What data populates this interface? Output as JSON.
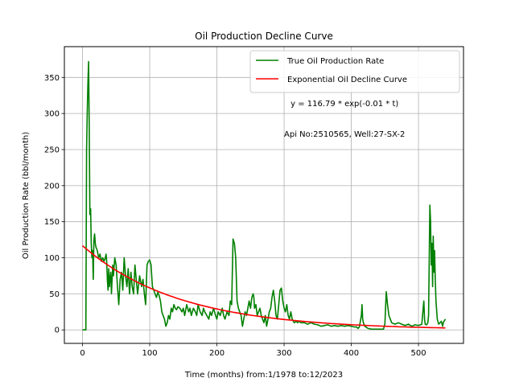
{
  "chart_data": {
    "type": "line",
    "title": "Oil Production Decline Curve",
    "xlabel": "Time (months) from:1/1978 to:12/2023",
    "ylabel": "Oil Production Rate (bbl/month)",
    "xlim": [
      -27,
      567
    ],
    "ylim": [
      -18.7,
      392.7
    ],
    "xticks": [
      0,
      100,
      200,
      300,
      400,
      500
    ],
    "yticks": [
      0,
      50,
      100,
      150,
      200,
      250,
      300,
      350
    ],
    "grid": true,
    "legend_position": "top-right",
    "annotations": [
      {
        "text": "y = 116.79 * exp(-0.01 * t)",
        "x": 390,
        "y": 310
      },
      {
        "text": "Api No:2510565, Well:27-SX-2",
        "x": 390,
        "y": 268
      }
    ],
    "series": [
      {
        "name": "True Oil Production Rate",
        "color": "#008000",
        "points": [
          [
            0,
            0
          ],
          [
            2,
            0
          ],
          [
            4,
            0
          ],
          [
            5,
            0
          ],
          [
            6,
            250
          ],
          [
            7,
            300
          ],
          [
            8,
            340
          ],
          [
            9,
            372
          ],
          [
            10,
            280
          ],
          [
            11,
            160
          ],
          [
            12,
            168
          ],
          [
            13,
            120
          ],
          [
            14,
            100
          ],
          [
            15,
            110
          ],
          [
            16,
            70
          ],
          [
            17,
            125
          ],
          [
            18,
            133
          ],
          [
            19,
            120
          ],
          [
            20,
            115
          ],
          [
            22,
            110
          ],
          [
            24,
            100
          ],
          [
            26,
            105
          ],
          [
            28,
            95
          ],
          [
            30,
            100
          ],
          [
            32,
            95
          ],
          [
            34,
            100
          ],
          [
            35,
            105
          ],
          [
            36,
            95
          ],
          [
            37,
            70
          ],
          [
            38,
            55
          ],
          [
            39,
            85
          ],
          [
            40,
            60
          ],
          [
            42,
            80
          ],
          [
            43,
            50
          ],
          [
            44,
            70
          ],
          [
            45,
            90
          ],
          [
            46,
            75
          ],
          [
            48,
            100
          ],
          [
            50,
            90
          ],
          [
            52,
            60
          ],
          [
            54,
            35
          ],
          [
            56,
            70
          ],
          [
            58,
            80
          ],
          [
            60,
            55
          ],
          [
            62,
            100
          ],
          [
            64,
            75
          ],
          [
            66,
            60
          ],
          [
            68,
            85
          ],
          [
            70,
            50
          ],
          [
            72,
            80
          ],
          [
            74,
            60
          ],
          [
            76,
            50
          ],
          [
            78,
            90
          ],
          [
            80,
            70
          ],
          [
            82,
            50
          ],
          [
            85,
            75
          ],
          [
            88,
            60
          ],
          [
            90,
            70
          ],
          [
            92,
            50
          ],
          [
            94,
            35
          ],
          [
            96,
            90
          ],
          [
            98,
            95
          ],
          [
            100,
            97
          ],
          [
            102,
            90
          ],
          [
            104,
            60
          ],
          [
            106,
            55
          ],
          [
            108,
            50
          ],
          [
            110,
            45
          ],
          [
            112,
            52
          ],
          [
            114,
            48
          ],
          [
            116,
            40
          ],
          [
            118,
            25
          ],
          [
            120,
            20
          ],
          [
            122,
            15
          ],
          [
            124,
            5
          ],
          [
            126,
            10
          ],
          [
            128,
            20
          ],
          [
            130,
            15
          ],
          [
            132,
            30
          ],
          [
            134,
            25
          ],
          [
            136,
            35
          ],
          [
            138,
            30
          ],
          [
            140,
            28
          ],
          [
            142,
            32
          ],
          [
            145,
            30
          ],
          [
            148,
            25
          ],
          [
            150,
            30
          ],
          [
            152,
            20
          ],
          [
            155,
            35
          ],
          [
            158,
            25
          ],
          [
            160,
            30
          ],
          [
            162,
            20
          ],
          [
            165,
            30
          ],
          [
            168,
            25
          ],
          [
            170,
            20
          ],
          [
            172,
            35
          ],
          [
            175,
            25
          ],
          [
            178,
            20
          ],
          [
            180,
            30
          ],
          [
            182,
            25
          ],
          [
            185,
            20
          ],
          [
            188,
            15
          ],
          [
            190,
            25
          ],
          [
            192,
            20
          ],
          [
            195,
            30
          ],
          [
            198,
            20
          ],
          [
            200,
            15
          ],
          [
            202,
            25
          ],
          [
            205,
            20
          ],
          [
            208,
            30
          ],
          [
            210,
            20
          ],
          [
            212,
            15
          ],
          [
            215,
            25
          ],
          [
            218,
            20
          ],
          [
            220,
            40
          ],
          [
            222,
            35
          ],
          [
            224,
            126
          ],
          [
            226,
            120
          ],
          [
            228,
            100
          ],
          [
            230,
            40
          ],
          [
            232,
            30
          ],
          [
            234,
            25
          ],
          [
            236,
            20
          ],
          [
            238,
            5
          ],
          [
            240,
            15
          ],
          [
            242,
            25
          ],
          [
            244,
            20
          ],
          [
            246,
            30
          ],
          [
            248,
            40
          ],
          [
            250,
            30
          ],
          [
            252,
            45
          ],
          [
            254,
            50
          ],
          [
            255,
            45
          ],
          [
            256,
            30
          ],
          [
            258,
            35
          ],
          [
            260,
            20
          ],
          [
            262,
            25
          ],
          [
            264,
            30
          ],
          [
            266,
            20
          ],
          [
            268,
            15
          ],
          [
            270,
            10
          ],
          [
            272,
            20
          ],
          [
            274,
            5
          ],
          [
            276,
            15
          ],
          [
            278,
            25
          ],
          [
            280,
            30
          ],
          [
            282,
            45
          ],
          [
            284,
            55
          ],
          [
            286,
            40
          ],
          [
            288,
            20
          ],
          [
            290,
            15
          ],
          [
            292,
            35
          ],
          [
            294,
            55
          ],
          [
            296,
            58
          ],
          [
            298,
            40
          ],
          [
            300,
            30
          ],
          [
            302,
            25
          ],
          [
            304,
            35
          ],
          [
            306,
            20
          ],
          [
            308,
            15
          ],
          [
            310,
            25
          ],
          [
            312,
            15
          ],
          [
            315,
            10
          ],
          [
            318,
            12
          ],
          [
            320,
            10
          ],
          [
            322,
            12
          ],
          [
            325,
            10
          ],
          [
            330,
            10
          ],
          [
            335,
            8
          ],
          [
            340,
            10
          ],
          [
            345,
            8
          ],
          [
            350,
            7
          ],
          [
            355,
            5
          ],
          [
            360,
            6
          ],
          [
            365,
            7
          ],
          [
            370,
            5
          ],
          [
            375,
            6
          ],
          [
            380,
            5
          ],
          [
            385,
            6
          ],
          [
            390,
            5
          ],
          [
            395,
            6
          ],
          [
            400,
            5
          ],
          [
            405,
            4
          ],
          [
            408,
            4
          ],
          [
            410,
            2
          ],
          [
            412,
            4
          ],
          [
            415,
            20
          ],
          [
            416,
            35
          ],
          [
            417,
            15
          ],
          [
            418,
            10
          ],
          [
            420,
            5
          ],
          [
            425,
            2
          ],
          [
            430,
            1
          ],
          [
            435,
            1
          ],
          [
            440,
            1
          ],
          [
            445,
            1
          ],
          [
            448,
            1
          ],
          [
            450,
            8
          ],
          [
            452,
            53
          ],
          [
            454,
            35
          ],
          [
            456,
            20
          ],
          [
            458,
            15
          ],
          [
            460,
            10
          ],
          [
            465,
            8
          ],
          [
            470,
            10
          ],
          [
            475,
            8
          ],
          [
            480,
            6
          ],
          [
            485,
            8
          ],
          [
            490,
            5
          ],
          [
            495,
            7
          ],
          [
            500,
            6
          ],
          [
            503,
            7
          ],
          [
            505,
            8
          ],
          [
            507,
            30
          ],
          [
            508,
            40
          ],
          [
            509,
            15
          ],
          [
            510,
            8
          ],
          [
            512,
            7
          ],
          [
            514,
            10
          ],
          [
            515,
            20
          ],
          [
            517,
            173
          ],
          [
            518,
            150
          ],
          [
            519,
            90
          ],
          [
            520,
            120
          ],
          [
            521,
            60
          ],
          [
            522,
            130
          ],
          [
            523,
            80
          ],
          [
            524,
            110
          ],
          [
            525,
            70
          ],
          [
            526,
            40
          ],
          [
            528,
            15
          ],
          [
            530,
            8
          ],
          [
            532,
            10
          ],
          [
            534,
            12
          ],
          [
            536,
            5
          ],
          [
            537,
            10
          ],
          [
            538,
            12
          ],
          [
            540,
            15
          ]
        ]
      },
      {
        "name": "Exponential Oil Decline Curve",
        "color": "#ff0000",
        "fit": {
          "a": 116.79,
          "b": -0.006963,
          "t_start": 0,
          "t_end": 540
        }
      }
    ]
  }
}
